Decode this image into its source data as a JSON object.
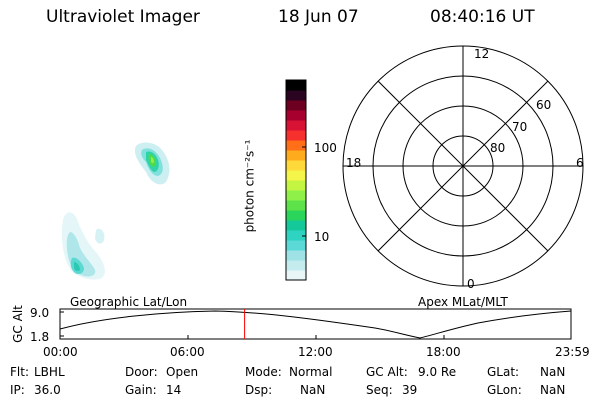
{
  "header": {
    "instrument": "Ultraviolet Imager",
    "date": "18 Jun 07",
    "time": "08:40:16 UT"
  },
  "colorbar": {
    "label": "photon cm⁻²s⁻¹",
    "ticks": [
      "100",
      "10"
    ],
    "colors": [
      "#e8f6f8",
      "#c4ecee",
      "#9ee2e6",
      "#5ad9d6",
      "#2fd3c2",
      "#14c89a",
      "#2bd45b",
      "#5ee24a",
      "#8ff04a",
      "#c3f542",
      "#f4f44a",
      "#ffd83a",
      "#ffab1e",
      "#ff6f17",
      "#f5302d",
      "#d81234",
      "#a8002e",
      "#6d0020",
      "#2a0420",
      "#000000"
    ]
  },
  "polar": {
    "mlt_labels": [
      "12",
      "18",
      "6",
      "0"
    ],
    "lat_labels": [
      "60",
      "70",
      "80"
    ]
  },
  "timeline": {
    "left_label": "Geographic Lat/Lon",
    "right_label": "Apex MLat/MLT",
    "y_axis_label": "GC Alt",
    "y_ticks": [
      "9.0",
      "1.8"
    ],
    "x_ticks": [
      "00:00",
      "06:00",
      "12:00",
      "18:00",
      "23:59"
    ],
    "current_time_hours": 8.67,
    "marker_color": "#ff0000"
  },
  "info": {
    "row1": {
      "flt_label": "Flt:",
      "flt_value": "LBHL",
      "door_label": "Door:",
      "door_value": "Open",
      "mode_label": "Mode:",
      "mode_value": "Normal",
      "gcalt_label": "GC Alt:",
      "gcalt_value": "9.0 Re",
      "glat_label": "GLat:",
      "glat_value": "NaN"
    },
    "row2": {
      "ip_label": "IP:",
      "ip_value": "36.0",
      "gain_label": "Gain:",
      "gain_value": "14",
      "dsp_label": "Dsp:",
      "dsp_value": "NaN",
      "seq_label": "Seq:",
      "seq_value": "39",
      "glon_label": "GLon:",
      "glon_value": "NaN"
    }
  }
}
